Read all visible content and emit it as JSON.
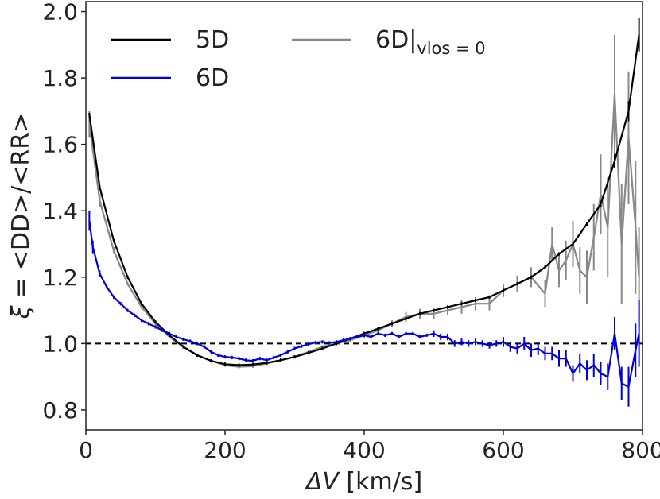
{
  "chart_data": {
    "type": "line",
    "xlabel_symbol": "ΔV",
    "xlabel_unit": "[km/s]",
    "ylabel_symbol": "ξ",
    "ylabel_rest": " = <DD>/<RR>",
    "xlim": [
      0,
      800
    ],
    "ylim": [
      0.74,
      2.03
    ],
    "xticks": [
      0,
      200,
      400,
      600,
      800
    ],
    "xtick_labels": [
      "0",
      "200",
      "400",
      "600",
      "800"
    ],
    "yticks": [
      0.8,
      1.0,
      1.2,
      1.4,
      1.6,
      1.8,
      2.0
    ],
    "ytick_labels": [
      "0.8",
      "1.0",
      "1.2",
      "1.4",
      "1.6",
      "1.8",
      "2.0"
    ],
    "reference_line": {
      "y": 1.0,
      "style": "dashed",
      "color": "#000000"
    },
    "legend": {
      "position": "top-left",
      "columns": 2
    },
    "series": [
      {
        "name": "5D",
        "legend_label": "5D",
        "color": "#000000",
        "x": [
          5,
          20,
          40,
          60,
          80,
          100,
          120,
          140,
          160,
          180,
          200,
          220,
          240,
          260,
          280,
          300,
          320,
          340,
          360,
          380,
          400,
          420,
          440,
          460,
          480,
          500,
          520,
          540,
          560,
          580,
          600,
          620,
          640,
          660,
          680,
          700,
          720,
          740,
          760,
          780,
          795
        ],
        "y": [
          1.69,
          1.47,
          1.31,
          1.2,
          1.12,
          1.065,
          1.025,
          0.99,
          0.965,
          0.948,
          0.938,
          0.935,
          0.937,
          0.942,
          0.95,
          0.96,
          0.972,
          0.985,
          1.0,
          1.015,
          1.03,
          1.045,
          1.06,
          1.075,
          1.09,
          1.1,
          1.11,
          1.12,
          1.13,
          1.14,
          1.16,
          1.18,
          1.2,
          1.23,
          1.27,
          1.3,
          1.36,
          1.42,
          1.55,
          1.7,
          1.93
        ],
        "errors": [
          0.005,
          0.005,
          0.005,
          0.005,
          0.005,
          0.005,
          0.005,
          0.005,
          0.005,
          0.005,
          0.005,
          0.005,
          0.005,
          0.005,
          0.005,
          0.005,
          0.005,
          0.005,
          0.005,
          0.005,
          0.005,
          0.005,
          0.005,
          0.005,
          0.005,
          0.005,
          0.005,
          0.005,
          0.005,
          0.005,
          0.005,
          0.005,
          0.005,
          0.005,
          0.005,
          0.005,
          0.005,
          0.01,
          0.02,
          0.03,
          0.05
        ]
      },
      {
        "name": "6D",
        "legend_label": "6D",
        "color": "#0000dd",
        "x": [
          5,
          10,
          20,
          30,
          40,
          50,
          60,
          70,
          80,
          90,
          100,
          110,
          120,
          130,
          140,
          150,
          160,
          170,
          180,
          190,
          200,
          210,
          220,
          230,
          240,
          250,
          260,
          270,
          280,
          290,
          300,
          310,
          320,
          330,
          340,
          350,
          360,
          370,
          380,
          390,
          400,
          410,
          420,
          430,
          440,
          450,
          460,
          470,
          480,
          490,
          500,
          510,
          520,
          530,
          540,
          550,
          560,
          570,
          580,
          590,
          600,
          610,
          620,
          630,
          640,
          650,
          660,
          670,
          680,
          690,
          700,
          710,
          720,
          730,
          740,
          750,
          760,
          770,
          780,
          790,
          795
        ],
        "y": [
          1.37,
          1.29,
          1.21,
          1.17,
          1.14,
          1.12,
          1.1,
          1.085,
          1.07,
          1.06,
          1.05,
          1.04,
          1.03,
          1.02,
          1.013,
          1.007,
          1.0,
          0.99,
          0.975,
          0.965,
          0.96,
          0.958,
          0.955,
          0.95,
          0.948,
          0.955,
          0.95,
          0.958,
          0.965,
          0.975,
          0.985,
          0.992,
          0.998,
          1.003,
          1.005,
          1.002,
          1.005,
          1.01,
          1.015,
          1.02,
          1.025,
          1.02,
          1.03,
          1.025,
          1.03,
          1.02,
          1.03,
          1.03,
          1.02,
          1.025,
          1.03,
          1.02,
          1.02,
          1.0,
          1.005,
          1.0,
          1.005,
          1.0,
          0.995,
          1.0,
          1.005,
          0.99,
          0.985,
          1.0,
          0.98,
          0.985,
          0.97,
          0.97,
          0.955,
          0.955,
          0.91,
          0.94,
          0.92,
          0.935,
          0.91,
          0.9,
          1.03,
          0.88,
          0.87,
          0.98,
          1.03
        ],
        "errors": [
          0.03,
          0.02,
          0.01,
          0.005,
          0.005,
          0.005,
          0.005,
          0.005,
          0.005,
          0.005,
          0.005,
          0.005,
          0.005,
          0.005,
          0.005,
          0.005,
          0.005,
          0.005,
          0.005,
          0.005,
          0.005,
          0.005,
          0.005,
          0.005,
          0.005,
          0.005,
          0.005,
          0.005,
          0.005,
          0.005,
          0.005,
          0.005,
          0.005,
          0.005,
          0.005,
          0.005,
          0.005,
          0.005,
          0.005,
          0.005,
          0.005,
          0.005,
          0.005,
          0.005,
          0.005,
          0.005,
          0.005,
          0.005,
          0.005,
          0.005,
          0.01,
          0.01,
          0.01,
          0.01,
          0.01,
          0.01,
          0.01,
          0.01,
          0.01,
          0.01,
          0.015,
          0.015,
          0.015,
          0.02,
          0.02,
          0.02,
          0.02,
          0.02,
          0.025,
          0.025,
          0.025,
          0.03,
          0.03,
          0.035,
          0.035,
          0.04,
          0.05,
          0.05,
          0.06,
          0.08,
          0.1
        ]
      },
      {
        "name": "6D|vlos=0",
        "legend_label_main": "6D|",
        "legend_label_sub": "vlos = 0",
        "color": "#888888",
        "x": [
          5,
          20,
          40,
          60,
          80,
          100,
          120,
          140,
          160,
          180,
          200,
          220,
          240,
          260,
          280,
          300,
          320,
          340,
          360,
          380,
          400,
          420,
          440,
          460,
          480,
          500,
          520,
          540,
          560,
          580,
          600,
          620,
          640,
          660,
          670,
          680,
          690,
          700,
          710,
          720,
          730,
          740,
          750,
          760,
          770,
          780,
          790,
          795
        ],
        "y": [
          1.66,
          1.43,
          1.28,
          1.18,
          1.11,
          1.06,
          1.02,
          0.99,
          0.965,
          0.948,
          0.935,
          0.93,
          0.932,
          0.94,
          0.95,
          0.96,
          0.975,
          0.99,
          1.0,
          1.01,
          1.025,
          1.04,
          1.06,
          1.08,
          1.09,
          1.09,
          1.1,
          1.11,
          1.12,
          1.12,
          1.16,
          1.18,
          1.2,
          1.15,
          1.3,
          1.22,
          1.25,
          1.3,
          1.22,
          1.2,
          1.32,
          1.45,
          1.35,
          1.75,
          1.3,
          1.62,
          1.35,
          1.2
        ],
        "errors": [
          0.04,
          0.02,
          0.01,
          0.005,
          0.005,
          0.005,
          0.005,
          0.005,
          0.005,
          0.005,
          0.005,
          0.005,
          0.005,
          0.005,
          0.005,
          0.005,
          0.005,
          0.005,
          0.005,
          0.005,
          0.01,
          0.01,
          0.01,
          0.015,
          0.015,
          0.015,
          0.015,
          0.02,
          0.02,
          0.02,
          0.02,
          0.025,
          0.03,
          0.04,
          0.05,
          0.05,
          0.06,
          0.07,
          0.07,
          0.08,
          0.1,
          0.12,
          0.15,
          0.18,
          0.18,
          0.2,
          0.2,
          0.15
        ]
      }
    ]
  }
}
